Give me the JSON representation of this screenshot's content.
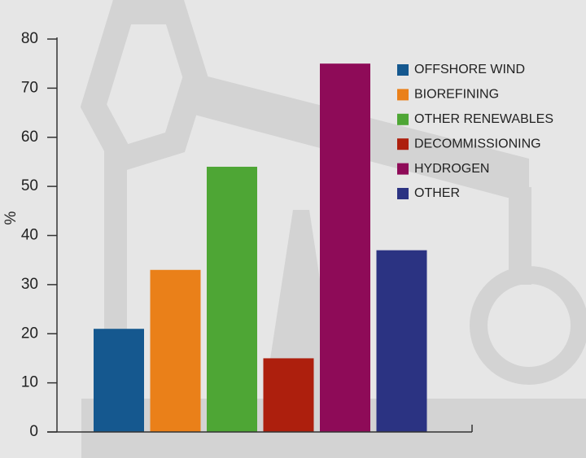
{
  "chart_data": {
    "type": "bar",
    "y_label": "%",
    "categories": [
      null
    ],
    "series": [
      {
        "name": "OFFSHORE WIND",
        "color": "#15588f",
        "values": [
          21
        ]
      },
      {
        "name": "BIOREFINING",
        "color": "#ea8019",
        "values": [
          33
        ]
      },
      {
        "name": "OTHER RENEWABLES",
        "color": "#4ea635",
        "values": [
          54
        ]
      },
      {
        "name": "DECOMMISSIONING",
        "color": "#ad1f0d",
        "values": [
          15
        ]
      },
      {
        "name": "HYDROGEN",
        "color": "#8e0b58",
        "values": [
          75
        ]
      },
      {
        "name": "OTHER",
        "color": "#2b3382",
        "values": [
          37
        ]
      }
    ],
    "ylim": [
      0,
      80
    ],
    "yticks": [
      0,
      10,
      20,
      30,
      40,
      50,
      60,
      70,
      80
    ],
    "legend": "top-right"
  }
}
